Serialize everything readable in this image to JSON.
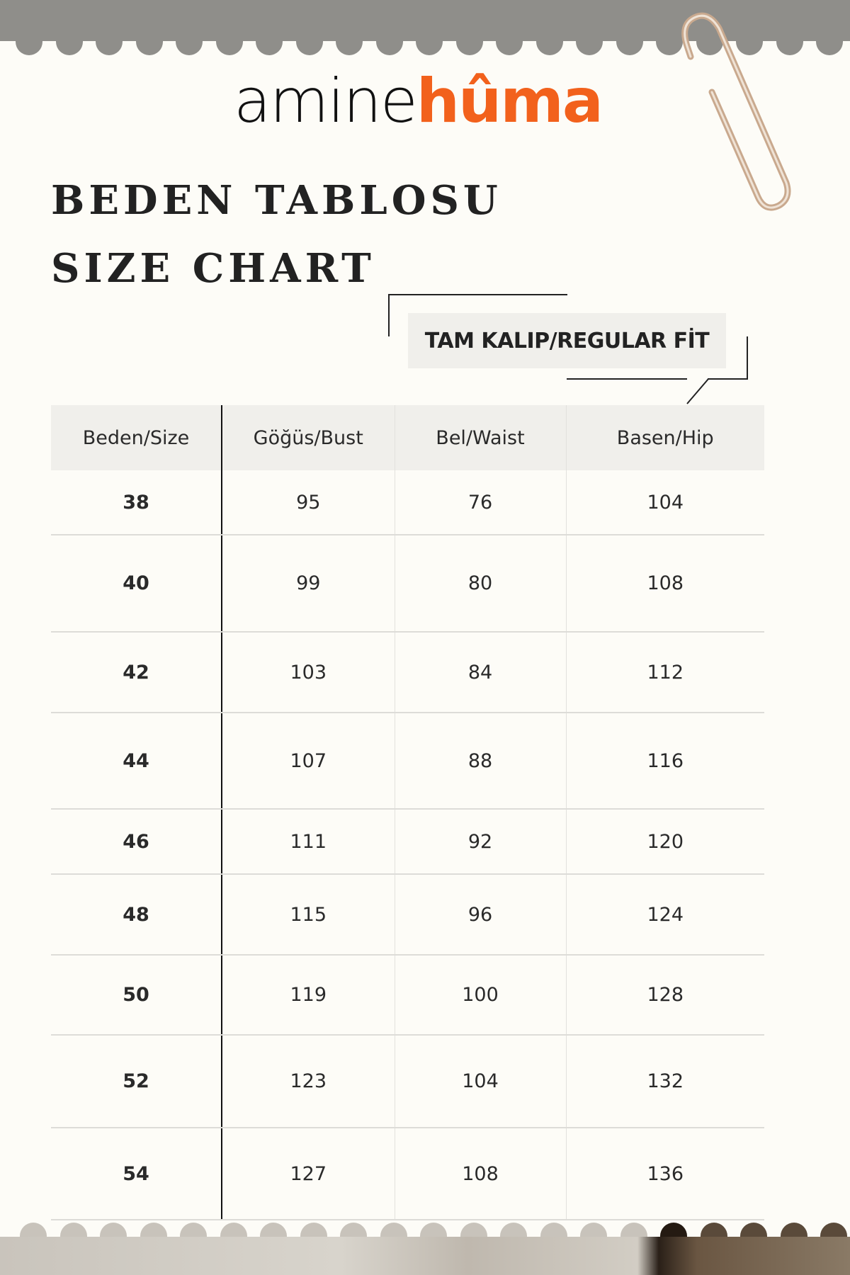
{
  "brand": {
    "part1": "amine",
    "part2": "hûma",
    "accent_color": "#f2611c"
  },
  "titles": {
    "tr": "BEDEN TABLOSU",
    "en": "SIZE CHART"
  },
  "fit_badge": "TAM KALIP/REGULAR FİT",
  "table": {
    "headers": [
      "Beden/Size",
      "Göğüs/Bust",
      "Bel/Waist",
      "Basen/Hip"
    ],
    "rows": [
      [
        "38",
        "95",
        "76",
        "104"
      ],
      [
        "40",
        "99",
        "80",
        "108"
      ],
      [
        "42",
        "103",
        "84",
        "112"
      ],
      [
        "44",
        "107",
        "88",
        "116"
      ],
      [
        "46",
        "111",
        "92",
        "120"
      ],
      [
        "48",
        "115",
        "96",
        "124"
      ],
      [
        "50",
        "119",
        "100",
        "128"
      ],
      [
        "52",
        "123",
        "104",
        "132"
      ],
      [
        "54",
        "127",
        "108",
        "136"
      ]
    ]
  }
}
